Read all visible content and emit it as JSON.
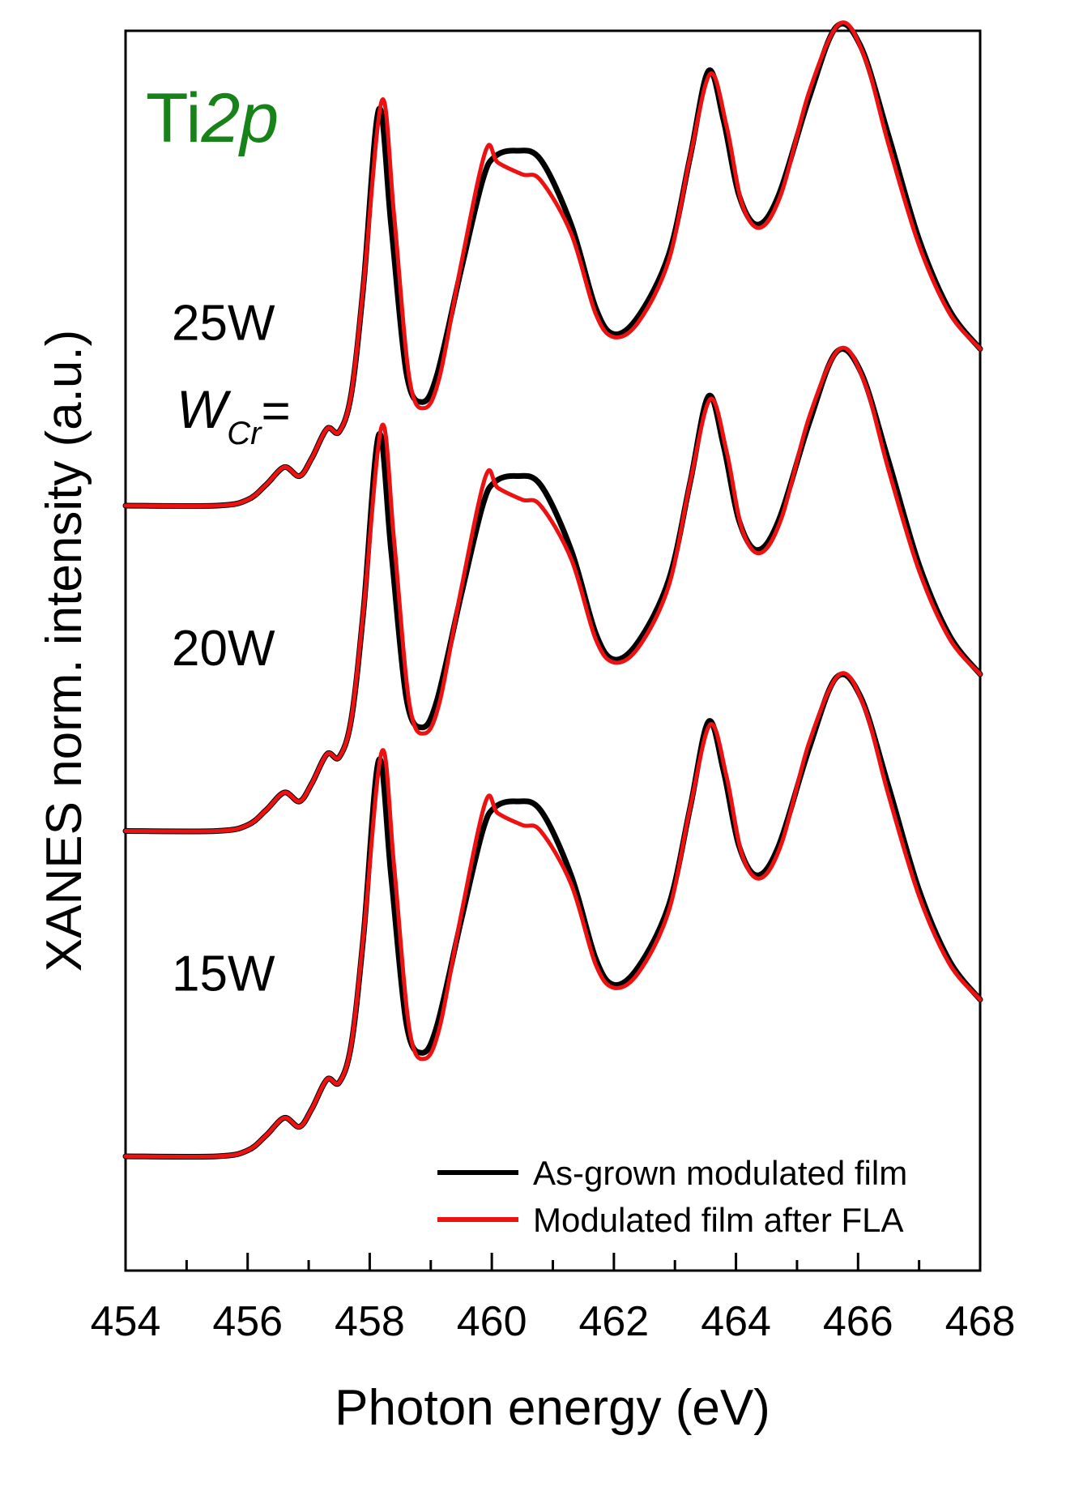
{
  "chart_data": {
    "type": "line",
    "xlabel": "Photon energy (eV)",
    "ylabel": "XANES norm. intensity (a.u.)",
    "xlim": [
      454,
      468
    ],
    "x_ticks": [
      454,
      456,
      458,
      460,
      462,
      464,
      466,
      468
    ],
    "x_tick_labels": [
      "454",
      "456",
      "458",
      "460",
      "462",
      "464",
      "466",
      "468"
    ],
    "y_ticks_shown": false,
    "grid": false,
    "element_label": {
      "main": "Ti",
      "italic": "2p",
      "color": "#178217"
    },
    "parameter_label": {
      "symbol": "W",
      "subscript": "Cr",
      "suffix": "="
    },
    "legend": {
      "position": "bottom-right",
      "entries": [
        {
          "label": "As-grown modulated film",
          "color": "#000000"
        },
        {
          "label": "Modulated film after FLA",
          "color": "#ee1111"
        }
      ]
    },
    "offset_groups": [
      {
        "label": "25W",
        "offset": 2.2
      },
      {
        "label": "20W",
        "offset": 1.1
      },
      {
        "label": "15W",
        "offset": 0.0
      }
    ],
    "series": [
      {
        "name": "As-grown modulated film",
        "color": "#000000",
        "points": [
          [
            454.0,
            0.0
          ],
          [
            455.5,
            0.0
          ],
          [
            456.0,
            0.02
          ],
          [
            456.3,
            0.07
          ],
          [
            456.6,
            0.13
          ],
          [
            456.85,
            0.1
          ],
          [
            457.05,
            0.16
          ],
          [
            457.3,
            0.26
          ],
          [
            457.5,
            0.25
          ],
          [
            457.7,
            0.38
          ],
          [
            457.9,
            0.75
          ],
          [
            458.15,
            1.34
          ],
          [
            458.35,
            0.95
          ],
          [
            458.6,
            0.45
          ],
          [
            458.85,
            0.35
          ],
          [
            459.1,
            0.44
          ],
          [
            459.5,
            0.8
          ],
          [
            459.85,
            1.1
          ],
          [
            460.05,
            1.18
          ],
          [
            460.4,
            1.2
          ],
          [
            460.8,
            1.17
          ],
          [
            461.3,
            0.95
          ],
          [
            461.7,
            0.67
          ],
          [
            462.0,
            0.58
          ],
          [
            462.4,
            0.64
          ],
          [
            462.9,
            0.85
          ],
          [
            463.25,
            1.18
          ],
          [
            463.55,
            1.47
          ],
          [
            463.8,
            1.3
          ],
          [
            464.05,
            1.05
          ],
          [
            464.35,
            0.95
          ],
          [
            464.7,
            1.05
          ],
          [
            465.2,
            1.38
          ],
          [
            465.65,
            1.62
          ],
          [
            466.05,
            1.55
          ],
          [
            466.5,
            1.25
          ],
          [
            467.0,
            0.9
          ],
          [
            467.5,
            0.66
          ],
          [
            468.0,
            0.53
          ]
        ]
      },
      {
        "name": "Modulated film after FLA",
        "color": "#ee1111",
        "points": [
          [
            454.0,
            0.0
          ],
          [
            455.5,
            0.0
          ],
          [
            456.0,
            0.02
          ],
          [
            456.3,
            0.07
          ],
          [
            456.6,
            0.13
          ],
          [
            456.85,
            0.1
          ],
          [
            457.05,
            0.16
          ],
          [
            457.3,
            0.26
          ],
          [
            457.5,
            0.25
          ],
          [
            457.7,
            0.38
          ],
          [
            457.9,
            0.75
          ],
          [
            458.2,
            1.37
          ],
          [
            458.4,
            0.98
          ],
          [
            458.65,
            0.43
          ],
          [
            458.9,
            0.33
          ],
          [
            459.15,
            0.44
          ],
          [
            459.5,
            0.82
          ],
          [
            459.9,
            1.2
          ],
          [
            460.1,
            1.16
          ],
          [
            460.5,
            1.12
          ],
          [
            460.8,
            1.1
          ],
          [
            461.3,
            0.92
          ],
          [
            461.7,
            0.65
          ],
          [
            462.0,
            0.57
          ],
          [
            462.4,
            0.62
          ],
          [
            462.9,
            0.83
          ],
          [
            463.25,
            1.18
          ],
          [
            463.58,
            1.46
          ],
          [
            463.85,
            1.28
          ],
          [
            464.1,
            1.02
          ],
          [
            464.4,
            0.94
          ],
          [
            464.75,
            1.06
          ],
          [
            465.2,
            1.4
          ],
          [
            465.7,
            1.63
          ],
          [
            466.1,
            1.52
          ],
          [
            466.5,
            1.22
          ],
          [
            467.0,
            0.88
          ],
          [
            467.5,
            0.65
          ],
          [
            468.0,
            0.53
          ]
        ]
      }
    ]
  }
}
